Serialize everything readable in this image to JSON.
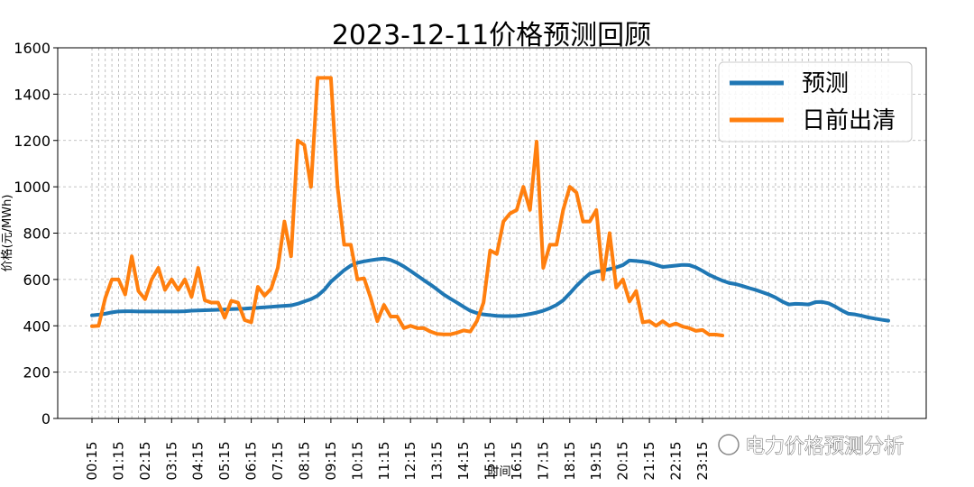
{
  "chart_data": {
    "type": "line",
    "title": "2023-12-11价格预测回顾",
    "xlabel": "时间",
    "ylabel": "价格(元/MWh)",
    "ylim": [
      0,
      1600
    ],
    "yticks": [
      0,
      200,
      400,
      600,
      800,
      1000,
      1200,
      1400,
      1600
    ],
    "grid": true,
    "legend_position": "top-right",
    "x_interval_minutes": 15,
    "x_start": "00:15",
    "x_ticklabels": [
      "00:15",
      "01:15",
      "02:15",
      "03:15",
      "04:15",
      "05:15",
      "06:15",
      "07:15",
      "08:15",
      "09:15",
      "10:15",
      "11:15",
      "12:15",
      "13:15",
      "14:15",
      "15:15",
      "16:15",
      "17:15",
      "18:15",
      "19:15",
      "20:15",
      "21:15",
      "22:15",
      "23:15"
    ],
    "series": [
      {
        "name": "预测",
        "color": "#1f77b4",
        "values": [
          445,
          448,
          452,
          458,
          462,
          463,
          463,
          462,
          462,
          462,
          462,
          462,
          462,
          462,
          463,
          465,
          466,
          467,
          468,
          469,
          470,
          472,
          473,
          474,
          476,
          478,
          480,
          482,
          484,
          486,
          488,
          495,
          505,
          515,
          530,
          555,
          590,
          615,
          640,
          660,
          672,
          678,
          683,
          687,
          690,
          684,
          672,
          656,
          637,
          617,
          597,
          578,
          557,
          535,
          517,
          500,
          482,
          465,
          455,
          449,
          446,
          443,
          442,
          442,
          443,
          446,
          451,
          457,
          465,
          476,
          490,
          510,
          540,
          572,
          600,
          625,
          634,
          638,
          645,
          652,
          662,
          682,
          680,
          677,
          672,
          663,
          654,
          657,
          660,
          663,
          662,
          652,
          637,
          620,
          607,
          595,
          585,
          580,
          572,
          563,
          555,
          545,
          535,
          522,
          505,
          492,
          495,
          494,
          492,
          502,
          503,
          497,
          483,
          466,
          452,
          449,
          443,
          436,
          431,
          426,
          422
        ],
        "x_start": "00:15"
      },
      {
        "name": "日前出清",
        "color": "#ff7f0e",
        "values": [
          398,
          400,
          520,
          600,
          600,
          535,
          700,
          550,
          515,
          600,
          650,
          555,
          600,
          555,
          600,
          525,
          650,
          510,
          500,
          500,
          435,
          508,
          500,
          425,
          415,
          568,
          530,
          560,
          650,
          850,
          700,
          1200,
          1180,
          1000,
          1470,
          1470,
          1470,
          1000,
          750,
          750,
          600,
          605,
          520,
          420,
          490,
          440,
          440,
          390,
          400,
          390,
          390,
          375,
          365,
          363,
          363,
          370,
          380,
          375,
          420,
          500,
          725,
          710,
          850,
          885,
          900,
          1000,
          900,
          1195,
          650,
          750,
          750,
          900,
          1000,
          975,
          850,
          850,
          900,
          600,
          800,
          565,
          600,
          505,
          550,
          415,
          420,
          400,
          420,
          400,
          410,
          397,
          390,
          378,
          382,
          362,
          362,
          358
        ]
      }
    ],
    "watermark": "电力价格预测分析"
  }
}
